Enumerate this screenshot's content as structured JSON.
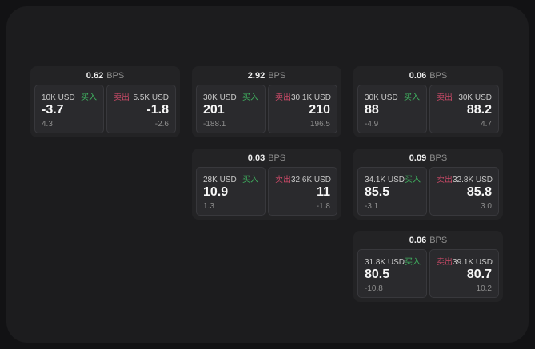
{
  "labels": {
    "bps_unit": "BPS",
    "buy": "买入",
    "sell": "卖出"
  },
  "colors": {
    "buy_green": "#3fb05f",
    "sell_red": "#cb4a68",
    "surface_bg": "#1c1c1e",
    "card_bg": "#232325",
    "panel_bg": "#2a2a2d"
  },
  "cards": [
    {
      "bps": "0.62",
      "buy": {
        "size": "10K USD",
        "value": "-3.7",
        "sub": "4.3"
      },
      "sell": {
        "size": "5.5K USD",
        "value": "-1.8",
        "sub": "-2.6"
      }
    },
    {
      "bps": "2.92",
      "buy": {
        "size": "30K USD",
        "value": "201",
        "sub": "-188.1"
      },
      "sell": {
        "size": "30.1K USD",
        "value": "210",
        "sub": "196.5"
      }
    },
    {
      "bps": "0.06",
      "buy": {
        "size": "30K USD",
        "value": "88",
        "sub": "-4.9"
      },
      "sell": {
        "size": "30K USD",
        "value": "88.2",
        "sub": "4.7"
      }
    },
    {
      "bps": "0.03",
      "buy": {
        "size": "28K USD",
        "value": "10.9",
        "sub": "1.3"
      },
      "sell": {
        "size": "32.6K USD",
        "value": "11",
        "sub": "-1.8"
      }
    },
    {
      "bps": "0.09",
      "buy": {
        "size": "34.1K USD",
        "value": "85.5",
        "sub": "-3.1"
      },
      "sell": {
        "size": "32.8K USD",
        "value": "85.8",
        "sub": "3.0"
      }
    },
    {
      "bps": "0.06",
      "buy": {
        "size": "31.8K USD",
        "value": "80.5",
        "sub": "-10.8"
      },
      "sell": {
        "size": "39.1K USD",
        "value": "80.7",
        "sub": "10.2"
      }
    }
  ]
}
